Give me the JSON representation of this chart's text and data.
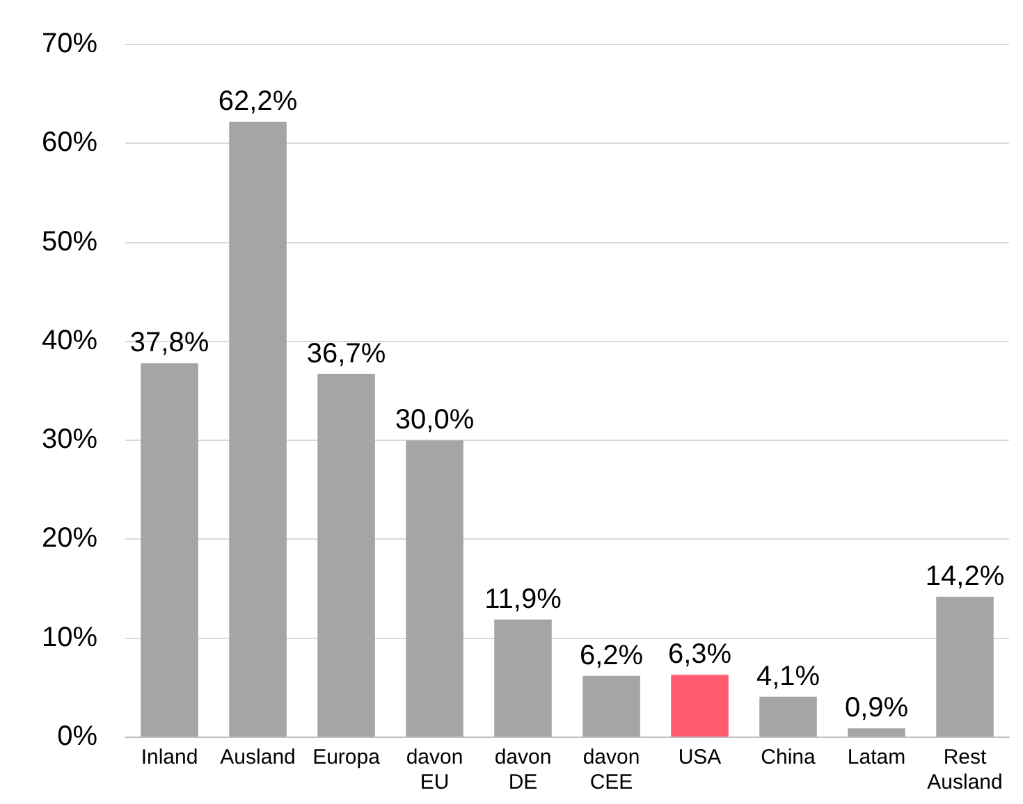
{
  "chart_data": {
    "type": "bar",
    "categories": [
      "Inland",
      "Ausland",
      "Europa",
      "davon EU",
      "davon DE",
      "davon CEE",
      "USA",
      "China",
      "Latam",
      "Rest Ausland"
    ],
    "values": [
      37.8,
      62.2,
      36.7,
      30.0,
      11.9,
      6.2,
      6.3,
      4.1,
      0.9,
      14.2
    ],
    "colors": [
      "#a5a5a5",
      "#a5a5a5",
      "#a5a5a5",
      "#a5a5a5",
      "#a5a5a5",
      "#a5a5a5",
      "#ff5a6e",
      "#a5a5a5",
      "#a5a5a5",
      "#a5a5a5"
    ],
    "value_labels": [
      "37,8%",
      "62,2%",
      "36,7%",
      "30,0%",
      "11,9%",
      "6,2%",
      "6,3%",
      "4,1%",
      "0,9%",
      "14,2%"
    ],
    "ylim": [
      0,
      70
    ],
    "yticks": [
      {
        "value": 0,
        "label": "0%"
      },
      {
        "value": 10,
        "label": "10%"
      },
      {
        "value": 20,
        "label": "20%"
      },
      {
        "value": 30,
        "label": "30%"
      },
      {
        "value": 40,
        "label": "40%"
      },
      {
        "value": 50,
        "label": "50%"
      },
      {
        "value": 60,
        "label": "60%"
      },
      {
        "value": 70,
        "label": "70%"
      }
    ],
    "grid": "y",
    "legend": false
  }
}
